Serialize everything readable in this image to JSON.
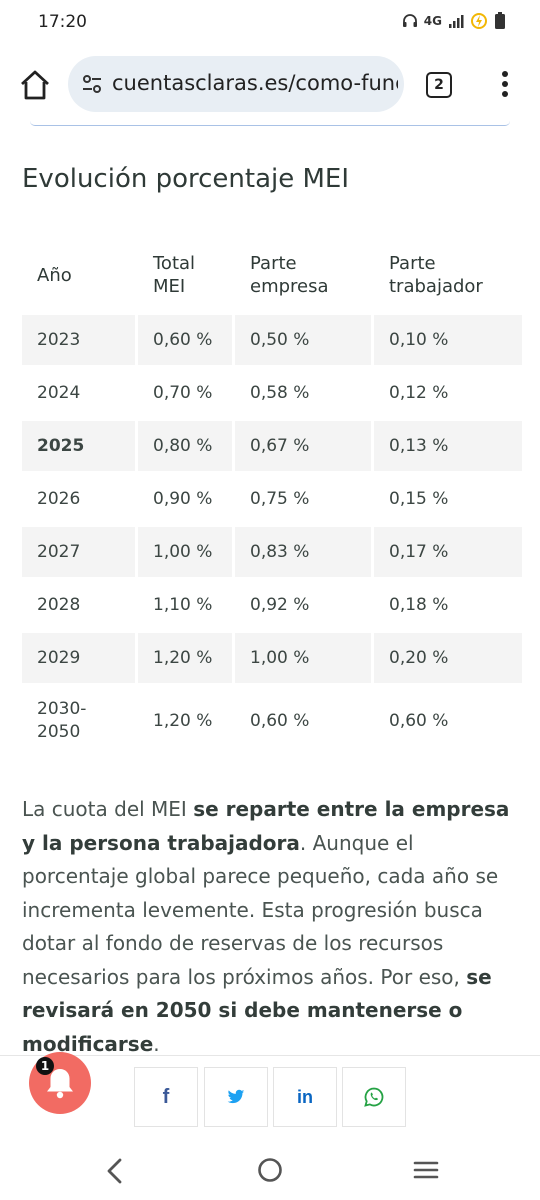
{
  "status_bar": {
    "time": "17:20",
    "network": "4G"
  },
  "browser": {
    "url": "cuentasclaras.es/como-func",
    "tab_count": "2"
  },
  "article": {
    "heading": "Evolución porcentaje MEI",
    "table": {
      "headers": [
        "Año",
        "Total MEI",
        "Parte empresa",
        "Parte trabajador"
      ],
      "rows": [
        [
          "2023",
          "0,60 %",
          "0,50 %",
          "0,10 %"
        ],
        [
          "2024",
          "0,70 %",
          "0,58 %",
          "0,12 %"
        ],
        [
          "2025",
          "0,80 %",
          "0,67 %",
          "0,13 %"
        ],
        [
          "2026",
          "0,90 %",
          "0,75 %",
          "0,15 %"
        ],
        [
          "2027",
          "1,00 %",
          "0,83 %",
          "0,17 %"
        ],
        [
          "2028",
          "1,10 %",
          "0,92 %",
          "0,18 %"
        ],
        [
          "2029",
          "1,20 %",
          "1,00 %",
          "0,20 %"
        ],
        [
          "2030-2050",
          "1,20 %",
          "0,60 %",
          "0,60 %"
        ]
      ]
    },
    "paragraph": {
      "p1": "La cuota del MEI ",
      "b1": "se reparte entre la empresa y la persona trabajadora",
      "p2": ". Aunque el porcentaje global parece pequeño, cada año se incrementa levemente. Esta progresión busca dotar al fondo de reservas de los recursos necesarios para los próximos años. Por eso, ",
      "b2": "se revisará en 2050 si debe mantenerse o modificarse",
      "p3": "."
    }
  },
  "notification": {
    "badge_count": "1"
  },
  "share": {
    "facebook": "f",
    "linkedin": "in"
  },
  "colors": {
    "facebook": "#3b5998",
    "twitter": "#1da1f2",
    "linkedin": "#0a66c2",
    "whatsapp": "#25a244",
    "bell_bg": "#f26b63"
  }
}
